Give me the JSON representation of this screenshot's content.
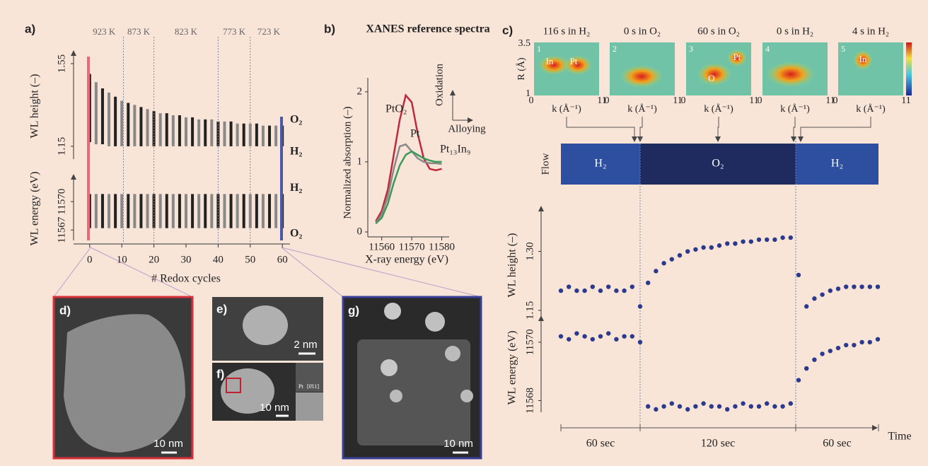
{
  "panel_a": {
    "label": "a)",
    "temperatures": [
      "923 K",
      "873 K",
      "823 K",
      "773 K",
      "723 K"
    ],
    "temperature_dividers": [
      10.5,
      20,
      40,
      50
    ],
    "xlabel": "# Redox cycles",
    "xlim": [
      -1.5,
      61.5
    ],
    "xticks": [
      0,
      10,
      20,
      30,
      40,
      50,
      60
    ],
    "x": [
      0,
      2,
      4,
      6,
      8,
      10,
      12,
      14,
      16,
      18,
      20,
      22,
      24,
      26,
      28,
      30,
      32,
      34,
      36,
      38,
      40,
      42,
      44,
      46,
      48,
      50,
      52,
      54,
      56,
      58,
      60
    ],
    "height": {
      "ylabel": "WL height (–)",
      "ylim": [
        1.088,
        1.584
      ],
      "yticks": [
        1.15,
        1.55
      ],
      "series": [
        {
          "name": "O₂",
          "color": "#2b3575",
          "values": [
            1.5,
            1.46,
            1.43,
            1.41,
            1.39,
            1.37,
            1.36,
            1.35,
            1.34,
            1.33,
            1.32,
            1.31,
            1.31,
            1.3,
            1.3,
            1.29,
            1.29,
            1.28,
            1.28,
            1.28,
            1.27,
            1.27,
            1.27,
            1.26,
            1.26,
            1.26,
            1.26,
            1.25,
            1.25,
            1.25,
            1.25
          ]
        },
        {
          "name": "H₂",
          "color": "#3450a8",
          "values": [
            1.17,
            1.16,
            1.16,
            1.15,
            1.15,
            1.15,
            1.15,
            1.15,
            1.15,
            1.15,
            1.15,
            1.15,
            1.15,
            1.15,
            1.15,
            1.15,
            1.15,
            1.15,
            1.15,
            1.15,
            1.15,
            1.15,
            1.15,
            1.15,
            1.15,
            1.15,
            1.15,
            1.15,
            1.15,
            1.15,
            1.15
          ]
        }
      ]
    },
    "energy": {
      "ylabel": "WL energy (eV)",
      "ylim": [
        11565.9,
        11572.25
      ],
      "yticks": [
        11567,
        11570
      ],
      "series": [
        {
          "name": "H₂",
          "color": "#3450a8",
          "values": [
            11570.8,
            11570.8,
            11570.8,
            11570.8,
            11570.8,
            11570.8,
            11570.8,
            11570.8,
            11570.8,
            11570.8,
            11570.8,
            11570.8,
            11570.8,
            11570.8,
            11570.8,
            11570.8,
            11570.8,
            11570.8,
            11570.8,
            11570.8,
            11570.8,
            11570.8,
            11570.8,
            11570.8,
            11570.8,
            11570.8,
            11570.8,
            11570.8,
            11570.8,
            11570.8,
            11570.8
          ]
        },
        {
          "name": "O₂",
          "color": "#2b3575",
          "values": [
            11567.2,
            11567.2,
            11567.2,
            11567.2,
            11567.2,
            11567.2,
            11567.2,
            11567.2,
            11567.2,
            11567.2,
            11567.2,
            11567.2,
            11567.2,
            11567.2,
            11567.2,
            11567.2,
            11567.2,
            11567.2,
            11567.2,
            11567.2,
            11567.2,
            11567.2,
            11567.2,
            11567.2,
            11567.2,
            11567.2,
            11567.2,
            11567.2,
            11567.2,
            11567.2,
            11567.2
          ]
        }
      ]
    }
  },
  "panel_b": {
    "label": "b)",
    "title": "XANES reference spectra",
    "xlabel": "X-ray energy (eV)",
    "ylabel": "Normalized absorption (–)",
    "xlim": [
      11557,
      11582
    ],
    "xticks": [
      11560,
      11570,
      11580
    ],
    "ylim": [
      0,
      2.2
    ],
    "yticks": [
      0,
      1,
      2
    ],
    "x": [
      11558,
      11560,
      11562,
      11564,
      11566,
      11568,
      11570,
      11572,
      11574,
      11576,
      11578,
      11580
    ],
    "series": [
      {
        "name": "PtO₂",
        "color": "#c0283c",
        "values": [
          0.15,
          0.3,
          0.6,
          1.1,
          1.6,
          1.95,
          1.85,
          1.4,
          1.05,
          0.9,
          0.88,
          0.9
        ]
      },
      {
        "name": "Pt",
        "color": "#8a8a8a",
        "values": [
          0.12,
          0.25,
          0.5,
          0.9,
          1.22,
          1.25,
          1.15,
          1.05,
          1.0,
          0.98,
          0.98,
          0.97
        ]
      },
      {
        "name": "Pt₁₃In₉",
        "color": "#3a9a5a",
        "values": [
          0.12,
          0.2,
          0.4,
          0.7,
          0.95,
          1.1,
          1.15,
          1.1,
          1.05,
          1.02,
          1.0,
          1.0
        ]
      }
    ],
    "annotations": [
      "Oxidation",
      "Alloying"
    ]
  },
  "panel_c": {
    "label": "c)",
    "maps": [
      {
        "title": "116 s in H₂",
        "number": "1",
        "elements": [
          "In",
          "Pt"
        ]
      },
      {
        "title": "0 s in O₂",
        "number": "2",
        "elements": []
      },
      {
        "title": "60 s in O₂",
        "number": "3",
        "elements": [
          "Pt",
          "O"
        ]
      },
      {
        "title": "0 s in H₂",
        "number": "4",
        "elements": []
      },
      {
        "title": "4 s in H₂",
        "number": "5",
        "elements": [
          "In"
        ]
      }
    ],
    "map_ylabel": "R (Å)",
    "map_yticks": [
      "3.5",
      "1"
    ],
    "map_xticks": [
      "0",
      "11"
    ],
    "map_xlabel": "k (Å⁻¹)",
    "flow_label": "Flow",
    "flow": [
      "H₂",
      "O₂",
      "H₂"
    ],
    "x": [
      0,
      6,
      12,
      18,
      24,
      30,
      36,
      42,
      48,
      54,
      60,
      66,
      72,
      78,
      84,
      90,
      96,
      102,
      108,
      114,
      120,
      126,
      132,
      138,
      144,
      150,
      156,
      162,
      168,
      174,
      180,
      186,
      192,
      198,
      204,
      210,
      216,
      222,
      228,
      234,
      240
    ],
    "xlim": [
      0,
      240
    ],
    "height": {
      "ylabel": "WL height (–)",
      "ylim": [
        1.13,
        1.4
      ],
      "yticks": [
        {
          "value": 1.3,
          "label": "1.30"
        },
        1.15
      ],
      "color": "#2b3a8c",
      "values": [
        1.2,
        1.21,
        1.2,
        1.2,
        1.21,
        1.2,
        1.21,
        1.2,
        1.2,
        1.21,
        1.16,
        1.22,
        1.25,
        1.27,
        1.28,
        1.29,
        1.3,
        1.305,
        1.31,
        1.31,
        1.315,
        1.32,
        1.32,
        1.325,
        1.325,
        1.33,
        1.33,
        1.33,
        1.335,
        1.335,
        1.24,
        1.16,
        1.18,
        1.19,
        1.2,
        1.205,
        1.21,
        1.21,
        1.21,
        1.21,
        1.21
      ]
    },
    "energy": {
      "ylabel": "WL energy (eV)",
      "ylim": [
        11567.6,
        11570.7
      ],
      "yticks": [
        11570,
        11568
      ],
      "color": "#2b3a8c",
      "values": [
        11570.2,
        11570.1,
        11570.3,
        11570.2,
        11570.1,
        11570.2,
        11570.3,
        11570.1,
        11570.2,
        11570.2,
        11570.0,
        11567.8,
        11567.7,
        11567.8,
        11567.9,
        11567.8,
        11567.7,
        11567.8,
        11567.9,
        11567.8,
        11567.8,
        11567.7,
        11567.8,
        11567.9,
        11567.8,
        11567.8,
        11567.9,
        11567.8,
        11567.8,
        11567.9,
        11568.7,
        11569.1,
        11569.4,
        11569.6,
        11569.7,
        11569.8,
        11569.9,
        11569.9,
        11570.0,
        11570.0,
        11570.1
      ]
    },
    "time_labels": [
      "60 sec",
      "120 sec",
      "60 sec"
    ],
    "time_axis": "Time"
  },
  "images": {
    "d": {
      "label": "d)",
      "scale": "10 nm"
    },
    "e": {
      "label": "e)",
      "scale": "2 nm"
    },
    "f": {
      "label": "f)",
      "scale": "10 nm",
      "inset": [
        "Pt",
        "[0̄11]"
      ]
    },
    "g": {
      "label": "g)",
      "scale": "10 nm"
    }
  }
}
